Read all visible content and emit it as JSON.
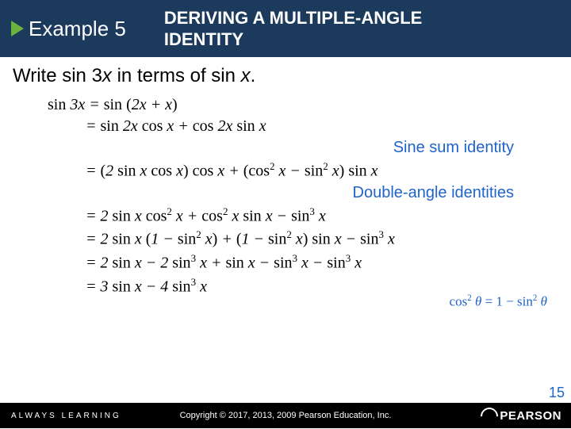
{
  "header": {
    "example_label": "Example 5",
    "title_line1": "DERIVING A MULTIPLE-ANGLE",
    "title_line2": "IDENTITY"
  },
  "prompt": {
    "text_before": "Write sin 3",
    "var1": "x",
    "text_mid": " in terms of sin ",
    "var2": "x",
    "text_after": "."
  },
  "math": {
    "line1_lhs": "sin 3x",
    "line1_rhs": "sin (2x + x)",
    "line2": "= sin 2x cos x + cos 2x sin x",
    "line3": "= (2 sin x cos x) cos x + (cos² x − sin² x) sin x",
    "line4": "= 2 sin x cos² x + cos² x sin x − sin³ x",
    "line5": "= 2 sin x (1 − sin² x) + (1 − sin² x) sin x − sin³ x",
    "line6": "= 2 sin x − 2 sin³ x + sin x − sin³ x − sin³ x",
    "line7": "= 3 sin x − 4 sin³ x"
  },
  "annotations": {
    "a1": "Sine sum identity",
    "a2": "Double-angle identities",
    "side_note": "cos² θ = 1 − sin² θ"
  },
  "footer": {
    "left": "ALWAYS LEARNING",
    "center": "Copyright © 2017, 2013, 2009 Pearson Education, Inc.",
    "brand": "PEARSON"
  },
  "page_number": "15",
  "colors": {
    "header_bg": "#1b3a5c",
    "accent_green": "#6cb33f",
    "annotation_blue": "#1f64c8",
    "footer_bg": "#000000"
  }
}
